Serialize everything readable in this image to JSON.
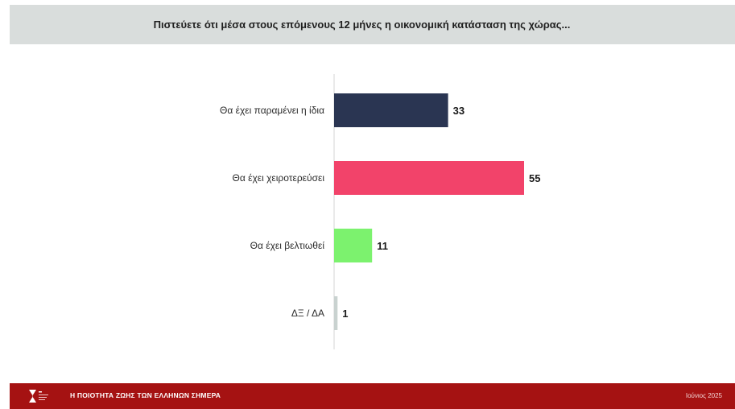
{
  "header": {
    "title": "Πιστεύετε ότι μέσα στους επόμενους 12 μήνες η οικονομική κατάσταση της χώρας..."
  },
  "chart_data": {
    "type": "bar",
    "orientation": "horizontal",
    "categories": [
      "Θα έχει παραμένει η ίδια",
      "Θα έχει χειροτερεύσει",
      "Θα έχει βελτιωθεί",
      "ΔΞ / ΔΑ"
    ],
    "values": [
      33,
      55,
      11,
      1
    ],
    "colors": [
      "#2a3552",
      "#f2436a",
      "#7cf26e",
      "#c9d2d0"
    ],
    "xlim": [
      0,
      60
    ],
    "data_labels": true,
    "grid": false
  },
  "footer": {
    "title": "Η ΠΟΙΟΤΗΤΑ ΖΩΗΣ ΤΩΝ ΕΛΛΗΝΩΝ ΣΗΜΕΡΑ",
    "date": "Ιούνιος 2025"
  },
  "colors": {
    "header_bg": "#d9dddc",
    "footer_bg": "#a51212",
    "axis": "#d4d4d4"
  }
}
